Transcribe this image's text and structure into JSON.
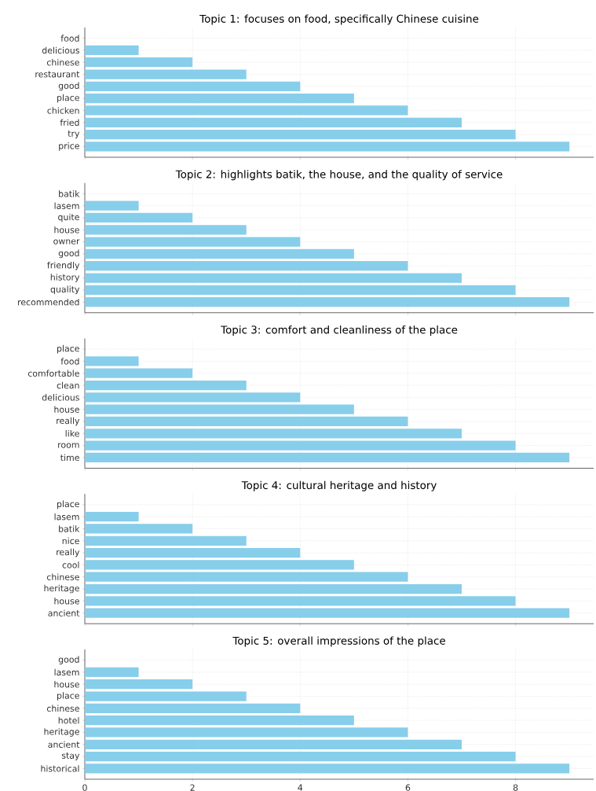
{
  "chart_data": [
    {
      "type": "bar",
      "orientation": "horizontal",
      "title": "Topic 1: focuses on food, specifically Chinese cuisine",
      "categories": [
        "food",
        "delicious",
        "chinese",
        "restaurant",
        "good",
        "place",
        "chicken",
        "fried",
        "try",
        "price"
      ],
      "values": [
        0,
        1,
        2,
        3,
        4,
        5,
        6,
        7,
        8,
        9
      ],
      "color": "#87ceeb",
      "xlim": [
        0,
        9.45
      ],
      "xticks": [
        0,
        2,
        4,
        6,
        8
      ],
      "grid": true,
      "tick_labels": "y"
    },
    {
      "type": "bar",
      "orientation": "horizontal",
      "title": "Topic 2: highlights batik, the house, and the quality of service",
      "categories": [
        "batik",
        "lasem",
        "quite",
        "house",
        "owner",
        "good",
        "friendly",
        "history",
        "quality",
        "recommended"
      ],
      "values": [
        0,
        1,
        2,
        3,
        4,
        5,
        6,
        7,
        8,
        9
      ],
      "color": "#87ceeb",
      "xlim": [
        0,
        9.45
      ],
      "xticks": [
        0,
        2,
        4,
        6,
        8
      ],
      "grid": true,
      "tick_labels": "y"
    },
    {
      "type": "bar",
      "orientation": "horizontal",
      "title": "Topic 3: comfort and cleanliness of the place",
      "categories": [
        "place",
        "food",
        "comfortable",
        "clean",
        "delicious",
        "house",
        "really",
        "like",
        "room",
        "time"
      ],
      "values": [
        0,
        1,
        2,
        3,
        4,
        5,
        6,
        7,
        8,
        9
      ],
      "color": "#87ceeb",
      "xlim": [
        0,
        9.45
      ],
      "xticks": [
        0,
        2,
        4,
        6,
        8
      ],
      "grid": true,
      "tick_labels": "y"
    },
    {
      "type": "bar",
      "orientation": "horizontal",
      "title": "Topic 4:  cultural heritage and history",
      "categories": [
        "place",
        "lasem",
        "batik",
        "nice",
        "really",
        "cool",
        "chinese",
        "heritage",
        "house",
        "ancient"
      ],
      "values": [
        0,
        1,
        2,
        3,
        4,
        5,
        6,
        7,
        8,
        9
      ],
      "color": "#87ceeb",
      "xlim": [
        0,
        9.45
      ],
      "xticks": [
        0,
        2,
        4,
        6,
        8
      ],
      "grid": true,
      "tick_labels": "y"
    },
    {
      "type": "bar",
      "orientation": "horizontal",
      "title": "Topic 5: overall impressions of the place",
      "categories": [
        "good",
        "lasem",
        "house",
        "place",
        "chinese",
        "hotel",
        "heritage",
        "ancient",
        "stay",
        "historical"
      ],
      "values": [
        0,
        1,
        2,
        3,
        4,
        5,
        6,
        7,
        8,
        9
      ],
      "color": "#87ceeb",
      "xlim": [
        0,
        9.45
      ],
      "xticks": [
        0,
        2,
        4,
        6,
        8
      ],
      "grid": true
    }
  ]
}
